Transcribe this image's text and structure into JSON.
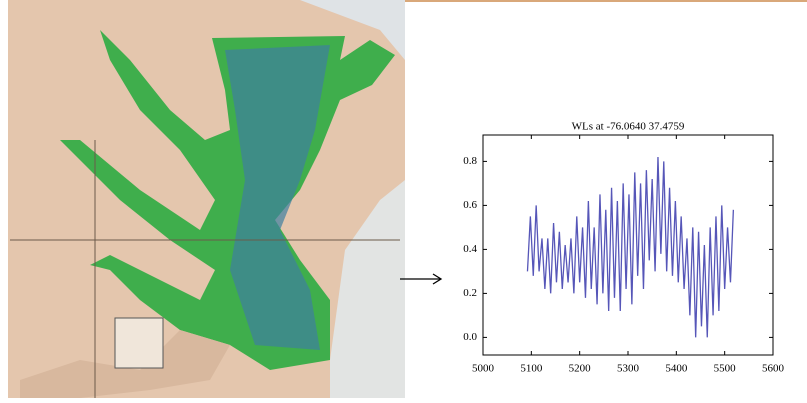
{
  "chart_data": {
    "type": "line",
    "title": "WLs at -76.0640 37.4759",
    "x": [
      5092,
      5098,
      5104,
      5110,
      5116,
      5122,
      5128,
      5134,
      5140,
      5146,
      5152,
      5158,
      5164,
      5170,
      5176,
      5182,
      5188,
      5194,
      5200,
      5206,
      5212,
      5218,
      5224,
      5230,
      5236,
      5242,
      5248,
      5254,
      5260,
      5266,
      5272,
      5278,
      5284,
      5290,
      5296,
      5302,
      5308,
      5314,
      5320,
      5326,
      5332,
      5338,
      5344,
      5350,
      5356,
      5362,
      5368,
      5374,
      5380,
      5386,
      5392,
      5398,
      5404,
      5410,
      5416,
      5422,
      5428,
      5434,
      5440,
      5446,
      5452,
      5458,
      5464,
      5470,
      5476,
      5482,
      5488,
      5494,
      5500,
      5506,
      5512,
      5518
    ],
    "series": [
      {
        "color": "#5656b8",
        "values": [
          0.3,
          0.55,
          0.28,
          0.6,
          0.3,
          0.45,
          0.22,
          0.45,
          0.2,
          0.52,
          0.25,
          0.48,
          0.22,
          0.42,
          0.25,
          0.45,
          0.2,
          0.55,
          0.25,
          0.5,
          0.18,
          0.62,
          0.22,
          0.5,
          0.15,
          0.65,
          0.2,
          0.58,
          0.12,
          0.68,
          0.18,
          0.62,
          0.12,
          0.7,
          0.22,
          0.65,
          0.15,
          0.75,
          0.28,
          0.7,
          0.22,
          0.76,
          0.35,
          0.72,
          0.3,
          0.82,
          0.38,
          0.8,
          0.3,
          0.68,
          0.28,
          0.62,
          0.25,
          0.55,
          0.22,
          0.45,
          0.1,
          0.5,
          0.0,
          0.48,
          0.05,
          0.42,
          0.0,
          0.5,
          0.1,
          0.55,
          0.12,
          0.6,
          0.22,
          0.5,
          0.25,
          0.58
        ]
      }
    ],
    "xlim": [
      5000,
      5600
    ],
    "xticks": [
      5000,
      5100,
      5200,
      5300,
      5400,
      5500,
      5600
    ],
    "ylim": [
      -0.08,
      0.92
    ],
    "yticks": [
      {
        "value": 0,
        "label": "0.0"
      },
      0.2,
      0.4,
      0.6,
      0.8
    ]
  }
}
